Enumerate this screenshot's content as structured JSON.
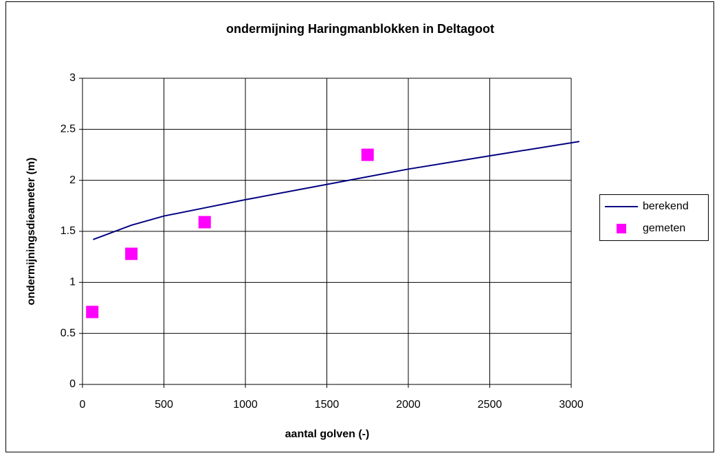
{
  "chart_data": {
    "type": "line_scatter",
    "title": "ondermijning Haringmanblokken in Deltagoot",
    "xlabel": "aantal golven (-)",
    "ylabel": "ondermijningsdieameter (m)",
    "xlim": [
      0,
      3000
    ],
    "xticks": [
      0,
      500,
      1000,
      1500,
      2000,
      2500,
      3000
    ],
    "ylim": [
      0,
      3
    ],
    "yticks": [
      0,
      0.5,
      1,
      1.5,
      2,
      2.5,
      3
    ],
    "grid": true,
    "legend": "right",
    "series": [
      {
        "name": "berekend",
        "type": "line",
        "color": "#000080",
        "x": [
          65,
          300,
          500,
          750,
          1000,
          1500,
          2000,
          2500,
          3050
        ],
        "values": [
          1.42,
          1.56,
          1.65,
          1.73,
          1.81,
          1.96,
          2.11,
          2.24,
          2.38
        ]
      },
      {
        "name": "gemeten",
        "type": "scatter",
        "color": "#ff00ff",
        "x": [
          60,
          300,
          750,
          1750
        ],
        "values": [
          0.71,
          1.28,
          1.59,
          2.25
        ]
      }
    ]
  }
}
